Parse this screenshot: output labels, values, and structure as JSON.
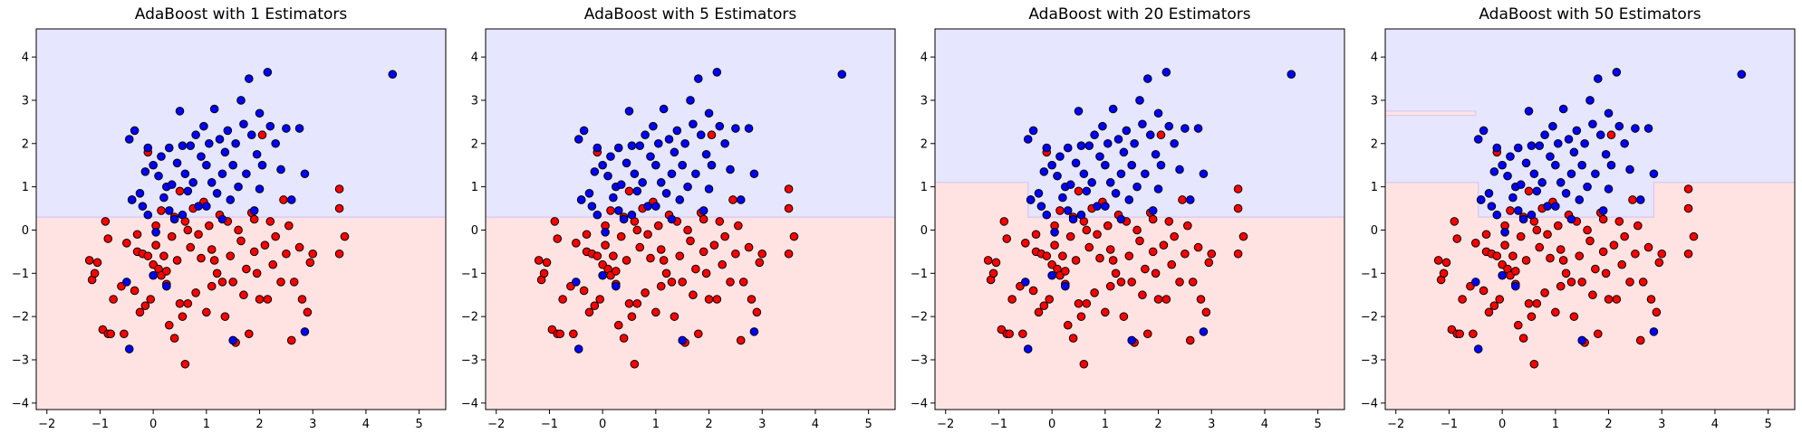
{
  "chart_data": [
    {
      "type": "scatter",
      "title": "AdaBoost with 1 Estimators",
      "n_estimators": 1,
      "xlim": [
        -2.2,
        5.5
      ],
      "ylim": [
        -4.15,
        4.65
      ],
      "xticks": [
        -2,
        -1,
        0,
        1,
        2,
        3,
        4,
        5
      ],
      "yticks": [
        -4,
        -3,
        -2,
        -1,
        0,
        1,
        2,
        3,
        4
      ],
      "decision_boundary": [
        [
          -2.2,
          0.3
        ],
        [
          5.5,
          0.3
        ]
      ],
      "regions": {
        "upper": "class_1_blue",
        "lower": "class_0_red"
      }
    },
    {
      "type": "scatter",
      "title": "AdaBoost with 5 Estimators",
      "n_estimators": 5,
      "xlim": [
        -2.2,
        5.5
      ],
      "ylim": [
        -4.15,
        4.65
      ],
      "xticks": [
        -2,
        -1,
        0,
        1,
        2,
        3,
        4,
        5
      ],
      "yticks": [
        -4,
        -3,
        -2,
        -1,
        0,
        1,
        2,
        3,
        4
      ],
      "decision_boundary": [
        [
          -2.2,
          0.3
        ],
        [
          5.5,
          0.3
        ]
      ],
      "regions": {
        "upper": "class_1_blue",
        "lower": "class_0_red"
      }
    },
    {
      "type": "scatter",
      "title": "AdaBoost with 20 Estimators",
      "n_estimators": 20,
      "xlim": [
        -2.2,
        5.5
      ],
      "ylim": [
        -4.15,
        4.65
      ],
      "xticks": [
        -2,
        -1,
        0,
        1,
        2,
        3,
        4,
        5
      ],
      "yticks": [
        -4,
        -3,
        -2,
        -1,
        0,
        1,
        2,
        3,
        4
      ],
      "decision_boundary": [
        [
          -2.2,
          1.1
        ],
        [
          -0.45,
          1.1
        ],
        [
          -0.45,
          0.3
        ],
        [
          5.5,
          0.3
        ]
      ],
      "regions": {
        "upper": "class_1_blue",
        "lower": "class_0_red"
      }
    },
    {
      "type": "scatter",
      "title": "AdaBoost with 50 Estimators",
      "n_estimators": 50,
      "xlim": [
        -2.2,
        5.5
      ],
      "ylim": [
        -4.15,
        4.65
      ],
      "xticks": [
        -2,
        -1,
        0,
        1,
        2,
        3,
        4,
        5
      ],
      "yticks": [
        -4,
        -3,
        -2,
        -1,
        0,
        1,
        2,
        3,
        4
      ],
      "decision_boundary": [
        [
          -2.2,
          1.1
        ],
        [
          -0.45,
          1.1
        ],
        [
          -0.45,
          0.3
        ],
        [
          2.85,
          0.3
        ],
        [
          2.85,
          1.1
        ],
        [
          5.5,
          1.1
        ]
      ],
      "strip_region": {
        "x": [
          -2.2,
          -0.5
        ],
        "y": [
          2.65,
          2.75
        ],
        "class": "class_0_red"
      },
      "regions": {
        "upper": "class_1_blue",
        "lower": "class_0_red"
      }
    }
  ],
  "points": {
    "class_0_red": [
      [
        -1.2,
        -0.7
      ],
      [
        -1.15,
        -1.15
      ],
      [
        -1.1,
        -1.0
      ],
      [
        -1.05,
        -0.75
      ],
      [
        -0.95,
        -2.3
      ],
      [
        -0.9,
        0.2
      ],
      [
        -0.85,
        -2.4
      ],
      [
        -0.8,
        -2.4
      ],
      [
        -0.85,
        -0.2
      ],
      [
        -0.75,
        -1.6
      ],
      [
        -0.6,
        -1.3
      ],
      [
        -0.55,
        -2.4
      ],
      [
        -0.5,
        -0.3
      ],
      [
        -0.4,
        0.7
      ],
      [
        -0.35,
        -1.4
      ],
      [
        -0.3,
        -0.5
      ],
      [
        -0.25,
        -1.9
      ],
      [
        -0.2,
        -0.55
      ],
      [
        -0.15,
        -1.75
      ],
      [
        -0.1,
        1.8
      ],
      [
        -0.1,
        -0.6
      ],
      [
        -0.05,
        -1.6
      ],
      [
        0.0,
        -0.8
      ],
      [
        0.05,
        0.1
      ],
      [
        0.05,
        -0.35
      ],
      [
        0.1,
        -0.9
      ],
      [
        0.15,
        0.45
      ],
      [
        0.15,
        -1.05
      ],
      [
        0.2,
        -0.6
      ],
      [
        0.25,
        -0.95
      ],
      [
        0.3,
        -2.2
      ],
      [
        0.35,
        -0.15
      ],
      [
        0.4,
        -2.5
      ],
      [
        0.4,
        0.3
      ],
      [
        0.45,
        -0.7
      ],
      [
        0.5,
        -1.7
      ],
      [
        0.5,
        0.9
      ],
      [
        0.55,
        -2.0
      ],
      [
        0.6,
        -3.1
      ],
      [
        0.6,
        0.2
      ],
      [
        0.65,
        -1.7
      ],
      [
        0.7,
        -0.4
      ],
      [
        0.75,
        0.5
      ],
      [
        0.8,
        -1.45
      ],
      [
        0.85,
        -0.1
      ],
      [
        0.9,
        -0.65
      ],
      [
        0.95,
        0.65
      ],
      [
        1.0,
        -1.9
      ],
      [
        1.05,
        0.1
      ],
      [
        1.1,
        -0.45
      ],
      [
        1.15,
        -0.7
      ],
      [
        1.2,
        -1.0
      ],
      [
        1.25,
        0.35
      ],
      [
        1.3,
        -1.2
      ],
      [
        1.35,
        -2.0
      ],
      [
        1.45,
        -0.6
      ],
      [
        1.5,
        -1.2
      ],
      [
        1.55,
        -2.6
      ],
      [
        1.6,
        0.0
      ],
      [
        1.65,
        -0.25
      ],
      [
        1.7,
        -1.5
      ],
      [
        1.75,
        -0.9
      ],
      [
        1.8,
        -2.4
      ],
      [
        1.85,
        0.4
      ],
      [
        1.9,
        -0.5
      ],
      [
        1.95,
        -1.0
      ],
      [
        2.0,
        -1.6
      ],
      [
        2.05,
        2.2
      ],
      [
        2.1,
        -0.35
      ],
      [
        2.15,
        -1.6
      ],
      [
        2.2,
        0.2
      ],
      [
        2.25,
        -0.8
      ],
      [
        2.3,
        -0.15
      ],
      [
        2.4,
        -1.2
      ],
      [
        2.45,
        0.7
      ],
      [
        2.5,
        -0.55
      ],
      [
        2.55,
        0.1
      ],
      [
        2.6,
        -2.55
      ],
      [
        2.65,
        -1.2
      ],
      [
        2.75,
        -0.4
      ],
      [
        2.8,
        -1.6
      ],
      [
        2.9,
        -1.9
      ],
      [
        2.95,
        -0.75
      ],
      [
        3.0,
        -0.55
      ],
      [
        3.5,
        0.95
      ],
      [
        3.5,
        0.5
      ],
      [
        3.5,
        -0.55
      ],
      [
        3.6,
        -0.15
      ],
      [
        1.1,
        -1.3
      ],
      [
        0.25,
        -1.25
      ],
      [
        -0.3,
        -0.1
      ],
      [
        1.4,
        0.2
      ],
      [
        0.65,
        0.0
      ],
      [
        1.9,
        0.25
      ]
    ],
    "class_1_blue": [
      [
        -0.45,
        2.1
      ],
      [
        -0.35,
        2.3
      ],
      [
        -0.4,
        0.7
      ],
      [
        -0.25,
        0.85
      ],
      [
        -0.2,
        0.55
      ],
      [
        -0.1,
        1.9
      ],
      [
        -0.1,
        0.35
      ],
      [
        0.0,
        1.5
      ],
      [
        0.05,
        -0.05
      ],
      [
        0.1,
        1.25
      ],
      [
        0.15,
        1.7
      ],
      [
        0.2,
        0.75
      ],
      [
        0.25,
        1.0
      ],
      [
        0.3,
        0.45
      ],
      [
        0.35,
        1.05
      ],
      [
        0.4,
        0.25
      ],
      [
        0.45,
        1.55
      ],
      [
        0.5,
        2.75
      ],
      [
        0.55,
        1.95
      ],
      [
        0.6,
        1.3
      ],
      [
        0.65,
        0.9
      ],
      [
        0.7,
        1.95
      ],
      [
        0.75,
        1.1
      ],
      [
        0.8,
        2.2
      ],
      [
        0.85,
        0.55
      ],
      [
        0.9,
        1.7
      ],
      [
        0.95,
        2.4
      ],
      [
        1.0,
        1.5
      ],
      [
        1.05,
        2.0
      ],
      [
        1.1,
        1.1
      ],
      [
        1.15,
        2.8
      ],
      [
        1.2,
        0.85
      ],
      [
        1.25,
        2.1
      ],
      [
        1.3,
        1.3
      ],
      [
        1.35,
        1.8
      ],
      [
        1.4,
        2.3
      ],
      [
        1.45,
        0.7
      ],
      [
        1.5,
        1.5
      ],
      [
        1.55,
        2.0
      ],
      [
        1.6,
        1.0
      ],
      [
        1.65,
        3.0
      ],
      [
        1.7,
        2.45
      ],
      [
        1.75,
        1.3
      ],
      [
        1.8,
        3.5
      ],
      [
        1.85,
        2.2
      ],
      [
        1.9,
        0.45
      ],
      [
        1.95,
        1.75
      ],
      [
        2.0,
        2.7
      ],
      [
        2.05,
        1.5
      ],
      [
        2.15,
        3.65
      ],
      [
        2.2,
        2.4
      ],
      [
        2.3,
        2.0
      ],
      [
        2.4,
        1.4
      ],
      [
        2.5,
        2.35
      ],
      [
        2.6,
        0.7
      ],
      [
        2.75,
        2.35
      ],
      [
        2.85,
        1.3
      ],
      [
        4.5,
        3.6
      ],
      [
        -0.5,
        -1.2
      ],
      [
        -0.45,
        -2.75
      ],
      [
        0.25,
        -1.3
      ],
      [
        1.5,
        -2.55
      ],
      [
        2.85,
        -2.35
      ],
      [
        0.0,
        -1.05
      ],
      [
        1.0,
        0.55
      ],
      [
        0.55,
        0.35
      ],
      [
        1.3,
        0.25
      ],
      [
        2.0,
        0.95
      ],
      [
        0.3,
        1.9
      ],
      [
        -0.15,
        1.35
      ]
    ]
  }
}
